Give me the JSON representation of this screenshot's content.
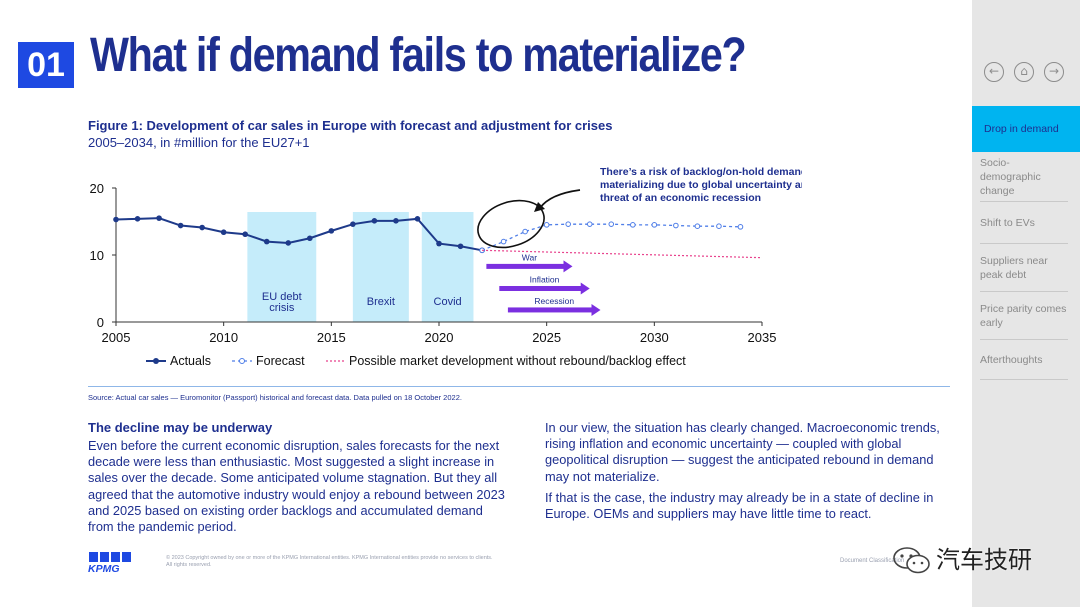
{
  "header": {
    "section_number": "01",
    "title": "What if demand fails to materialize?"
  },
  "figure": {
    "title": "Figure 1: Development of car sales in Europe with forecast and adjustment for crises",
    "subtitle": "2005–2034, in #million for the EU27+1",
    "annotation_line1": "There’s a risk of backlog/on-hold demand not",
    "annotation_line2": "materializing due to global uncertainty and the",
    "annotation_line3": "threat of an economic recession",
    "source": "Source: Actual car sales — Euromonitor (Passport) historical and forecast data. Data pulled on 18 October 2022."
  },
  "chart_data": {
    "type": "line",
    "title": "Figure 1: Development of car sales in Europe with forecast and adjustment for crises",
    "subtitle": "2005–2034, in #million for the EU27+1",
    "xlabel": "",
    "ylabel": "",
    "xlim": [
      2005,
      2035
    ],
    "ylim": [
      0,
      20
    ],
    "x_ticks": [
      "2005",
      "2010",
      "2015",
      "2020",
      "2025",
      "2030",
      "2035"
    ],
    "y_ticks": [
      "0",
      "10",
      "20"
    ],
    "grid": false,
    "legend_position": "bottom",
    "series": [
      {
        "name": "Actuals",
        "color": "#1e3a8a",
        "x": [
          2005,
          2006,
          2007,
          2008,
          2009,
          2010,
          2011,
          2012,
          2013,
          2014,
          2015,
          2016,
          2017,
          2018,
          2019,
          2020,
          2021,
          2022
        ],
        "y": [
          15.3,
          15.4,
          15.5,
          14.4,
          14.1,
          13.4,
          13.1,
          12.0,
          11.8,
          12.5,
          13.6,
          14.6,
          15.1,
          15.1,
          15.4,
          11.7,
          11.3,
          10.7
        ]
      },
      {
        "name": "Forecast",
        "color": "#4f7ee8",
        "x": [
          2022,
          2023,
          2024,
          2025,
          2026,
          2027,
          2028,
          2029,
          2030,
          2031,
          2032,
          2033,
          2034
        ],
        "y": [
          10.7,
          12.0,
          13.5,
          14.5,
          14.6,
          14.6,
          14.6,
          14.5,
          14.5,
          14.4,
          14.3,
          14.3,
          14.2
        ]
      },
      {
        "name": "Possible market development without rebound/backlog effect",
        "color": "#e8418c",
        "x": [
          2022,
          2035
        ],
        "y": [
          10.7,
          9.6
        ]
      }
    ],
    "shaded_periods": [
      {
        "label": "EU debt crisis",
        "label_line1": "EU debt",
        "label_line2": "crisis",
        "x_start": 2011.1,
        "x_end": 2014.3
      },
      {
        "label": "Brexit",
        "x_start": 2016.0,
        "x_end": 2018.6
      },
      {
        "label": "Covid",
        "x_start": 2019.2,
        "x_end": 2021.6
      }
    ],
    "arrows": [
      {
        "label": "War",
        "x_start": 2022.2,
        "x_end": 2026.2,
        "y": 8.3
      },
      {
        "label": "Inflation",
        "x_start": 2022.8,
        "x_end": 2027.0,
        "y": 5.0
      },
      {
        "label": "Recession",
        "x_start": 2023.2,
        "x_end": 2027.5,
        "y": 1.8
      }
    ]
  },
  "body": {
    "left_heading": "The decline may be underway",
    "left_paragraph": "Even before the current economic disruption, sales forecasts for the next decade were less than enthusiastic. Most suggested a slight increase in sales over the decade. Some anticipated volume stagnation. But they all agreed that the automotive industry would enjoy a rebound between 2023 and 2025 based on existing order backlogs and accumulated demand from the pandemic period.",
    "right_paragraph_1": "In our view, the situation has clearly changed. Macroeconomic trends, rising inflation and economic uncertainty — coupled with global geopolitical disruption — suggest the anticipated rebound in demand may not materialize.",
    "right_paragraph_2": "If that is the case, the industry may already be in a state of decline in Europe. OEMs and suppliers may have little time to react."
  },
  "footer": {
    "logo_text": "KPMG",
    "copyright_line1": "© 2023 Copyright owned by one or more of the KPMG International entities. KPMG International entities provide no services to clients.",
    "copyright_line2": "All rights reserved.",
    "doc_class": "Document Classification",
    "watermark_text": "汽车技研"
  },
  "sidebar": {
    "nav": {
      "back_icon": "arrow-left-circle-icon",
      "home_icon": "home-circle-icon",
      "forward_icon": "arrow-right-circle-icon"
    },
    "items": [
      {
        "label": "Drop in demand",
        "active": true
      },
      {
        "label": "Socio-demographic change",
        "active": false
      },
      {
        "label": "Shift to EVs",
        "active": false
      },
      {
        "label": "Suppliers near peak debt",
        "active": false
      },
      {
        "label": "Price parity comes early",
        "active": false
      },
      {
        "label": "Afterthoughts",
        "active": false
      }
    ],
    "accent_color": "#00b4f0",
    "background_color": "#e6e6e6"
  },
  "colors": {
    "primary_text": "#1e2f8f",
    "section_badge": "#1e49e2",
    "shade": "#c5ecfa",
    "arrow": "#7b2fe0"
  }
}
